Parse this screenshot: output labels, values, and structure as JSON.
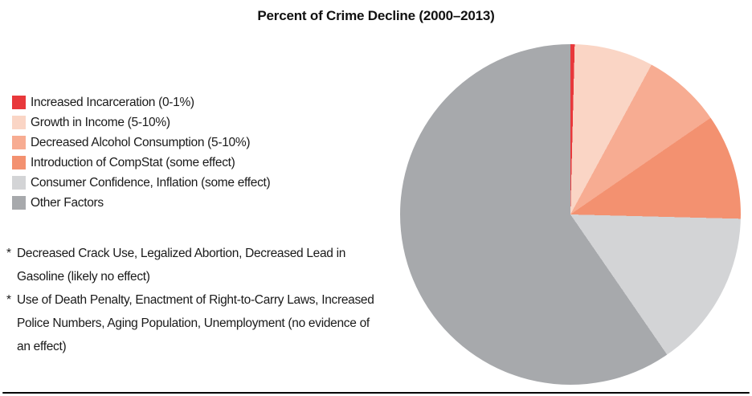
{
  "chart_data": {
    "type": "pie",
    "title": "Percent of Crime Decline (2000–2013)",
    "legend_position": "left",
    "start_angle_deg": 0,
    "direction": "clockwise",
    "series": [
      {
        "name": "Increased Incarceration (0-1%)",
        "value": 0.4,
        "color": "#e8383b"
      },
      {
        "name": "Growth in Income (5-10%)",
        "value": 7.5,
        "color": "#fad5c5"
      },
      {
        "name": "Decreased Alcohol Consumption (5-10%)",
        "value": 7.5,
        "color": "#f7ac92"
      },
      {
        "name": "Introduction of CompStat (some effect)",
        "value": 10.0,
        "color": "#f39170"
      },
      {
        "name": "Consumer Confidence, Inflation (some effect)",
        "value": 15.0,
        "color": "#d3d4d6"
      },
      {
        "name": "Other Factors",
        "value": 59.6,
        "color": "#a7a9ac"
      }
    ]
  },
  "footnotes": [
    {
      "marker": "*",
      "text": "Decreased Crack Use, Legalized Abortion, Decreased Lead in Gasoline (likely no effect)"
    },
    {
      "marker": "*",
      "text": "Use of Death Penalty, Enactment of Right-to-Carry Laws, Increased Police Numbers, Aging Population, Unemployment (no evidence of an effect)"
    }
  ]
}
